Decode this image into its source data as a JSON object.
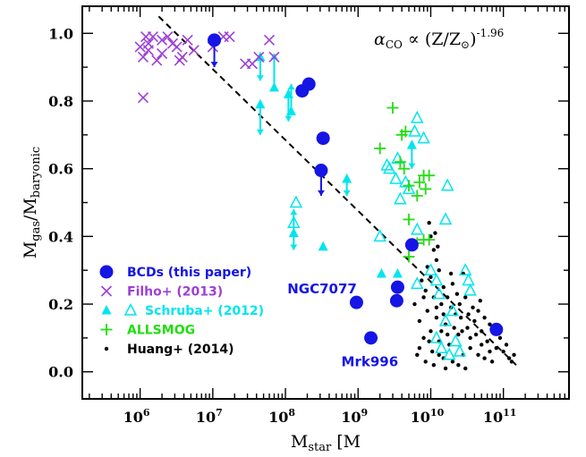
{
  "chart_data": {
    "type": "scatter",
    "title": "",
    "xlabel": "M_star [M_⊙]",
    "ylabel": "M_gas/M_baryonic",
    "x_scale": "log",
    "xlim": [
      160000.0,
      800000000000.0
    ],
    "ylim": [
      -0.08,
      1.08
    ],
    "x_tick_labels": [
      "10^6",
      "10^7",
      "10^8",
      "10^9",
      "10^10",
      "10^11"
    ],
    "y_tick_labels": [
      "0.0",
      "0.2",
      "0.4",
      "0.6",
      "0.8",
      "1.0"
    ],
    "annotation_formula": "α_CO ∝ (Z/Z_⊙)^-1.96",
    "annotations": [
      {
        "text": "NGC7077",
        "x": 320000000.0,
        "y": 0.245
      },
      {
        "text": "Mrk996",
        "x": 1450000000.0,
        "y": 0.03
      }
    ],
    "legend": {
      "placement": "lower-left",
      "entries": [
        {
          "label": "BCDs (this paper)",
          "marker": "filled-circle",
          "color": "#1515e6"
        },
        {
          "label": "Filho+ (2013)",
          "marker": "x",
          "color": "#9e3fd6"
        },
        {
          "label": "Schruba+ (2012)",
          "marker": "triangle-filled-and-open",
          "color": "#00e5ee"
        },
        {
          "label": "ALLSMOG",
          "marker": "plus",
          "color": "#22dd10"
        },
        {
          "label": "Huang+ (2014)",
          "marker": "dot",
          "color": "#000000"
        }
      ]
    },
    "fit_line": {
      "style": "dashed",
      "color": "#000000",
      "points": [
        [
          1800000.0,
          1.05
        ],
        [
          150000000000.0,
          0.02
        ]
      ]
    },
    "series": [
      {
        "name": "BCDs (this paper)",
        "marker": "filled-circle",
        "color": "#1515e6",
        "points": [
          [
            10500000.0,
            0.98
          ],
          [
            170000000.0,
            0.83
          ],
          [
            210000000.0,
            0.85
          ],
          [
            330000000.0,
            0.69
          ],
          [
            310000000.0,
            0.595
          ],
          [
            5500000000.0,
            0.375
          ],
          [
            950000000.0,
            0.205
          ],
          [
            3500000000.0,
            0.25
          ],
          [
            3400000000.0,
            0.21
          ],
          [
            1500000000.0,
            0.1
          ],
          [
            80000000000.0,
            0.125
          ]
        ],
        "limits": [
          {
            "x": 10500000.0,
            "from": 0.98,
            "to": 0.9
          },
          {
            "x": 310000000.0,
            "from": 0.595,
            "to": 0.52
          }
        ]
      },
      {
        "name": "Filho+ (2013)",
        "marker": "x",
        "color": "#9e3fd6",
        "points": [
          [
            1000000.0,
            0.96
          ],
          [
            1100000.0,
            0.93
          ],
          [
            1200000.0,
            0.99
          ],
          [
            1300000.0,
            0.97
          ],
          [
            1500000.0,
            0.99
          ],
          [
            1700000.0,
            0.92
          ],
          [
            2000000.0,
            0.94
          ],
          [
            2400000.0,
            0.99
          ],
          [
            2800000.0,
            0.97
          ],
          [
            3200000.0,
            0.96
          ],
          [
            3800000.0,
            0.93
          ],
          [
            4500000.0,
            0.98
          ],
          [
            5500000.0,
            0.95
          ],
          [
            10000000.0,
            0.96
          ],
          [
            14000000.0,
            0.99
          ],
          [
            17000000.0,
            0.99
          ],
          [
            28000000.0,
            0.91
          ],
          [
            35000000.0,
            0.91
          ],
          [
            43000000.0,
            0.93
          ],
          [
            60000000.0,
            0.98
          ],
          [
            70000000.0,
            0.93
          ],
          [
            1100000.0,
            0.81
          ],
          [
            1300000.0,
            0.95
          ],
          [
            2000000.0,
            0.98
          ],
          [
            3500000.0,
            0.92
          ]
        ]
      },
      {
        "name": "Schruba+ (2012)",
        "marker": "triangle-filled",
        "color": "#00e5ee",
        "points": [
          [
            45000000.0,
            0.79
          ],
          [
            45000000.0,
            0.93
          ],
          [
            70000000.0,
            0.84
          ],
          [
            110000000.0,
            0.82
          ],
          [
            120000000.0,
            0.77
          ],
          [
            130000000.0,
            0.41
          ],
          [
            330000000.0,
            0.37
          ],
          [
            700000000.0,
            0.57
          ],
          [
            2100000000.0,
            0.29
          ],
          [
            3500000000.0,
            0.29
          ],
          [
            5500000000.0,
            0.67
          ]
        ],
        "limits": [
          {
            "x": 45000000.0,
            "from": 0.79,
            "to": 0.7
          },
          {
            "x": 45000000.0,
            "from": 0.93,
            "to": 0.86
          },
          {
            "x": 70000000.0,
            "from": 0.84,
            "to": 0.94
          },
          {
            "x": 110000000.0,
            "from": 0.82,
            "to": 0.74
          },
          {
            "x": 120000000.0,
            "from": 0.77,
            "to": 0.85
          },
          {
            "x": 130000000.0,
            "from": 0.41,
            "to": 0.48
          },
          {
            "x": 130000000.0,
            "from": 0.41,
            "to": 0.36
          },
          {
            "x": 700000000.0,
            "from": 0.57,
            "to": 0.52
          },
          {
            "x": 5500000000.0,
            "from": 0.67,
            "to": 0.6
          }
        ]
      },
      {
        "name": "Schruba+ (2012)",
        "marker": "triangle-open",
        "color": "#00e5ee",
        "points": [
          [
            140000000.0,
            0.5
          ],
          [
            130000000.0,
            0.44
          ],
          [
            2000000000.0,
            0.4
          ],
          [
            2500000000.0,
            0.61
          ],
          [
            2700000000.0,
            0.6
          ],
          [
            3300000000.0,
            0.57
          ],
          [
            3500000000.0,
            0.63
          ],
          [
            3800000000.0,
            0.51
          ],
          [
            4500000000.0,
            0.56
          ],
          [
            5000000000.0,
            0.54
          ],
          [
            6500000000.0,
            0.75
          ],
          [
            6000000000.0,
            0.71
          ],
          [
            8000000000.0,
            0.69
          ],
          [
            6500000000.0,
            0.42
          ],
          [
            6500000000.0,
            0.26
          ],
          [
            10000000000.0,
            0.3
          ],
          [
            12000000000.0,
            0.27
          ],
          [
            13000000000.0,
            0.23
          ],
          [
            12000000000.0,
            0.1
          ],
          [
            14000000000.0,
            0.07
          ],
          [
            16000000000.0,
            0.15
          ],
          [
            20000000000.0,
            0.18
          ],
          [
            18000000000.0,
            0.05
          ],
          [
            22000000000.0,
            0.09
          ],
          [
            25000000000.0,
            0.06
          ],
          [
            16000000000.0,
            0.45
          ],
          [
            30000000000.0,
            0.3
          ],
          [
            33000000000.0,
            0.27
          ],
          [
            35000000000.0,
            0.24
          ],
          [
            17000000000.0,
            0.55
          ]
        ]
      },
      {
        "name": "ALLSMOG",
        "marker": "plus",
        "color": "#22dd10",
        "points": [
          [
            3000000000.0,
            0.78
          ],
          [
            4000000000.0,
            0.7
          ],
          [
            4500000000.0,
            0.71
          ],
          [
            2000000000.0,
            0.66
          ],
          [
            3800000000.0,
            0.62
          ],
          [
            4300000000.0,
            0.6
          ],
          [
            5000000000.0,
            0.55
          ],
          [
            7000000000.0,
            0.56
          ],
          [
            8000000000.0,
            0.58
          ],
          [
            9500000000.0,
            0.58
          ],
          [
            6500000000.0,
            0.52
          ],
          [
            8500000000.0,
            0.54
          ],
          [
            5000000000.0,
            0.45
          ],
          [
            8000000000.0,
            0.39
          ],
          [
            9500000000.0,
            0.39
          ],
          [
            5000000000.0,
            0.34
          ],
          [
            6500000000.0,
            0.38
          ]
        ]
      },
      {
        "name": "Huang+ (2014)",
        "marker": "dot",
        "color": "#000000",
        "points": [
          [
            9500000000.0,
            0.44
          ],
          [
            10000000000.0,
            0.4
          ],
          [
            11000000000.0,
            0.36
          ],
          [
            12000000000.0,
            0.33
          ],
          [
            9000000000.0,
            0.31
          ],
          [
            10000000000.0,
            0.28
          ],
          [
            13000000000.0,
            0.3
          ],
          [
            15000000000.0,
            0.25
          ],
          [
            8500000000.0,
            0.24
          ],
          [
            11000000000.0,
            0.22
          ],
          [
            14000000000.0,
            0.2
          ],
          [
            17000000000.0,
            0.22
          ],
          [
            20000000000.0,
            0.26
          ],
          [
            9000000000.0,
            0.18
          ],
          [
            12000000000.0,
            0.16
          ],
          [
            16000000000.0,
            0.14
          ],
          [
            22000000000.0,
            0.17
          ],
          [
            25000000000.0,
            0.2
          ],
          [
            30000000000.0,
            0.22
          ],
          [
            7000000000.0,
            0.15
          ],
          [
            8000000000.0,
            0.1
          ],
          [
            10000000000.0,
            0.12
          ],
          [
            13000000000.0,
            0.09
          ],
          [
            18000000000.0,
            0.08
          ],
          [
            24000000000.0,
            0.11
          ],
          [
            32000000000.0,
            0.13
          ],
          [
            40000000000.0,
            0.15
          ],
          [
            50000000000.0,
            0.12
          ],
          [
            60000000000.0,
            0.09
          ],
          [
            80000000000.0,
            0.07
          ],
          [
            100000000000.0,
            0.06
          ],
          [
            120000000000.0,
            0.04
          ],
          [
            6500000000.0,
            0.05
          ],
          [
            8500000000.0,
            0.03
          ],
          [
            11000000000.0,
            0.02
          ],
          [
            15000000000.0,
            0.04
          ],
          [
            20000000000.0,
            0.03
          ],
          [
            28000000000.0,
            0.05
          ],
          [
            35000000000.0,
            0.07
          ],
          [
            45000000000.0,
            0.05
          ],
          [
            55000000000.0,
            0.04
          ],
          [
            70000000000.0,
            0.03
          ],
          [
            90000000000.0,
            0.1
          ],
          [
            110000000000.0,
            0.08
          ],
          [
            6000000000.0,
            0.2
          ],
          [
            7500000000.0,
            0.27
          ],
          [
            11500000000.0,
            0.41
          ],
          [
            12500000000.0,
            0.37
          ],
          [
            28000000000.0,
            0.29
          ],
          [
            38000000000.0,
            0.19
          ],
          [
            45000000000.0,
            0.18
          ],
          [
            55000000000.0,
            0.16
          ],
          [
            65000000000.0,
            0.14
          ],
          [
            75000000000.0,
            0.12
          ],
          [
            21000000000.0,
            0.13
          ],
          [
            26000000000.0,
            0.16
          ],
          [
            19000000000.0,
            0.19
          ],
          [
            35000000000.0,
            0.1
          ],
          [
            42000000000.0,
            0.11
          ],
          [
            14000000000.0,
            0.12
          ],
          [
            17000000000.0,
            0.11
          ],
          [
            8000000000.0,
            0.22
          ],
          [
            9500000000.0,
            0.09
          ],
          [
            10500000000.0,
            0.06
          ],
          [
            13000000000.0,
            0.05
          ],
          [
            16000000000.0,
            0.01
          ],
          [
            24000000000.0,
            0.02
          ],
          [
            30000000000.0,
            0.01
          ],
          [
            50000000000.0,
            0.08
          ],
          [
            65000000000.0,
            0.06
          ],
          [
            140000000000.0,
            0.05
          ],
          [
            130000000000.0,
            0.03
          ],
          [
            7000000000.0,
            0.07
          ],
          [
            19000000000.0,
            0.29
          ],
          [
            23000000000.0,
            0.23
          ],
          [
            33000000000.0,
            0.17
          ],
          [
            48000000000.0,
            0.21
          ],
          [
            27000000000.0,
            0.12
          ],
          [
            12000000000.0,
            0.19
          ],
          [
            15000000000.0,
            0.17
          ]
        ]
      }
    ]
  }
}
